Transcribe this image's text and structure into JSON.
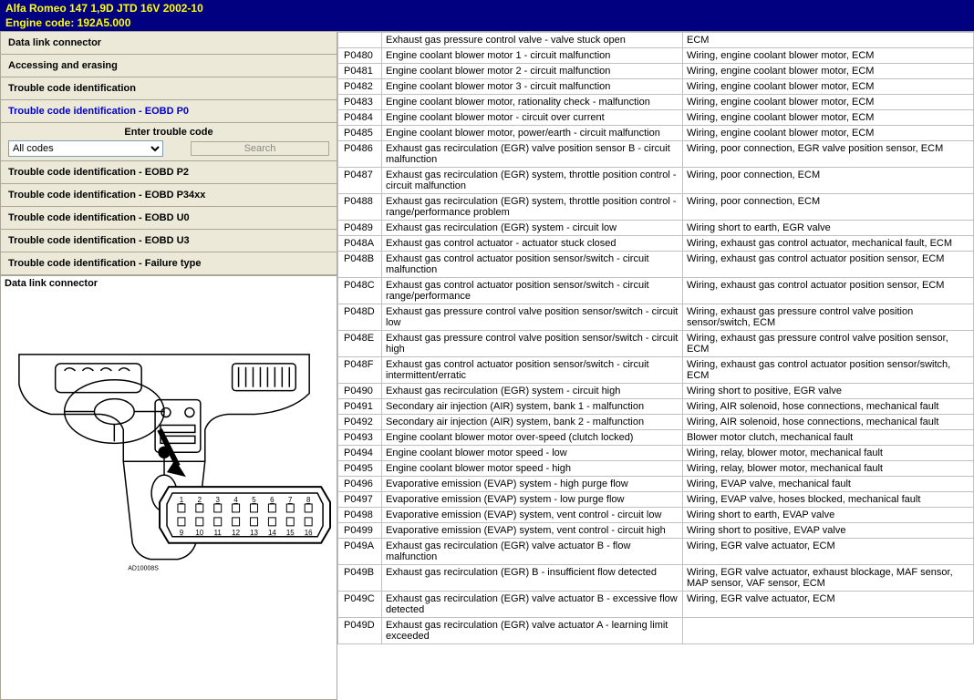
{
  "header": {
    "line1": "Alfa Romeo   147   1,9D JTD 16V 2002-10",
    "line2": "Engine code: 192A5.000"
  },
  "nav": {
    "items": [
      {
        "label": "Data link connector",
        "active": false
      },
      {
        "label": "Accessing and erasing",
        "active": false
      },
      {
        "label": "Trouble code identification",
        "active": false
      },
      {
        "label": "Trouble code identification - EOBD P0",
        "active": true
      }
    ],
    "items_after": [
      {
        "label": "Trouble code identification - EOBD P2"
      },
      {
        "label": "Trouble code identification - EOBD P34xx"
      },
      {
        "label": "Trouble code identification - EOBD U0"
      },
      {
        "label": "Trouble code identification - EOBD U3"
      },
      {
        "label": "Trouble code identification - Failure type"
      }
    ]
  },
  "search": {
    "title": "Enter trouble code",
    "select_value": "All codes",
    "button_label": "Search"
  },
  "diagram": {
    "title": "Data link connector",
    "ref": "AD10008S"
  },
  "codes_top_partial": {
    "desc": "Exhaust gas pressure control valve - valve stuck open",
    "cause": "ECM"
  },
  "codes": [
    {
      "code": "P0480",
      "desc": "Engine coolant blower motor 1 - circuit malfunction",
      "cause": "Wiring, engine coolant blower motor, ECM"
    },
    {
      "code": "P0481",
      "desc": "Engine coolant blower motor 2 - circuit malfunction",
      "cause": "Wiring, engine coolant blower motor, ECM"
    },
    {
      "code": "P0482",
      "desc": "Engine coolant blower motor 3 - circuit malfunction",
      "cause": "Wiring, engine coolant blower motor, ECM"
    },
    {
      "code": "P0483",
      "desc": "Engine coolant blower motor, rationality check - malfunction",
      "cause": "Wiring, engine coolant blower motor, ECM"
    },
    {
      "code": "P0484",
      "desc": "Engine coolant blower motor - circuit over current",
      "cause": "Wiring, engine coolant blower motor, ECM"
    },
    {
      "code": "P0485",
      "desc": "Engine coolant blower motor, power/earth - circuit malfunction",
      "cause": "Wiring, engine coolant blower motor, ECM"
    },
    {
      "code": "P0486",
      "desc": "Exhaust gas recirculation (EGR) valve position sensor B - circuit malfunction",
      "cause": "Wiring, poor connection, EGR valve position sensor, ECM"
    },
    {
      "code": "P0487",
      "desc": "Exhaust gas recirculation (EGR) system, throttle position control - circuit malfunction",
      "cause": "Wiring, poor connection, ECM"
    },
    {
      "code": "P0488",
      "desc": "Exhaust gas recirculation (EGR) system, throttle position control - range/performance problem",
      "cause": "Wiring, poor connection, ECM"
    },
    {
      "code": "P0489",
      "desc": "Exhaust gas recirculation (EGR) system - circuit low",
      "cause": "Wiring short to earth, EGR valve"
    },
    {
      "code": "P048A",
      "desc": "Exhaust gas control actuator - actuator stuck closed",
      "cause": "Wiring, exhaust gas control actuator, mechanical fault, ECM"
    },
    {
      "code": "P048B",
      "desc": "Exhaust gas control actuator position sensor/switch - circuit malfunction",
      "cause": "Wiring, exhaust gas control actuator position sensor, ECM"
    },
    {
      "code": "P048C",
      "desc": "Exhaust gas control actuator position sensor/switch - circuit range/performance",
      "cause": "Wiring, exhaust gas control actuator position sensor, ECM"
    },
    {
      "code": "P048D",
      "desc": "Exhaust gas pressure control valve position sensor/switch - circuit low",
      "cause": "Wiring, exhaust gas pressure control valve position sensor/switch, ECM"
    },
    {
      "code": "P048E",
      "desc": "Exhaust gas pressure control valve position sensor/switch - circuit high",
      "cause": "Wiring, exhaust gas pressure control valve position sensor, ECM"
    },
    {
      "code": "P048F",
      "desc": "Exhaust gas control actuator position sensor/switch - circuit intermittent/erratic",
      "cause": "Wiring, exhaust gas control actuator position sensor/switch, ECM"
    },
    {
      "code": "P0490",
      "desc": "Exhaust gas recirculation (EGR) system - circuit high",
      "cause": "Wiring short to positive, EGR valve"
    },
    {
      "code": "P0491",
      "desc": "Secondary air injection (AIR) system, bank 1 - malfunction",
      "cause": "Wiring, AIR solenoid, hose connections, mechanical fault"
    },
    {
      "code": "P0492",
      "desc": "Secondary air injection (AIR) system, bank 2 - malfunction",
      "cause": "Wiring, AIR solenoid, hose connections, mechanical fault"
    },
    {
      "code": "P0493",
      "desc": "Engine coolant blower motor over-speed (clutch locked)",
      "cause": "Blower motor clutch, mechanical fault"
    },
    {
      "code": "P0494",
      "desc": "Engine coolant blower motor speed - low",
      "cause": "Wiring, relay, blower motor, mechanical fault"
    },
    {
      "code": "P0495",
      "desc": "Engine coolant blower motor speed - high",
      "cause": "Wiring, relay, blower motor, mechanical fault"
    },
    {
      "code": "P0496",
      "desc": "Evaporative emission (EVAP) system - high purge flow",
      "cause": "Wiring, EVAP valve, mechanical fault"
    },
    {
      "code": "P0497",
      "desc": "Evaporative emission (EVAP) system - low purge flow",
      "cause": "Wiring, EVAP valve, hoses blocked, mechanical fault"
    },
    {
      "code": "P0498",
      "desc": "Evaporative emission (EVAP) system, vent control - circuit low",
      "cause": "Wiring short to earth, EVAP valve"
    },
    {
      "code": "P0499",
      "desc": "Evaporative emission (EVAP) system, vent control - circuit high",
      "cause": "Wiring short to positive, EVAP valve"
    },
    {
      "code": "P049A",
      "desc": "Exhaust gas recirculation (EGR) valve actuator B - flow malfunction",
      "cause": "Wiring, EGR valve actuator, ECM"
    },
    {
      "code": "P049B",
      "desc": "Exhaust gas recirculation (EGR) B - insufficient flow detected",
      "cause": "Wiring, EGR valve actuator, exhaust blockage, MAF sensor, MAP sensor, VAF sensor, ECM"
    },
    {
      "code": "P049C",
      "desc": "Exhaust gas recirculation (EGR) valve actuator B - excessive flow detected",
      "cause": "Wiring, EGR valve actuator, ECM"
    },
    {
      "code": "P049D",
      "desc": "Exhaust gas recirculation (EGR) valve actuator A - learning limit exceeded",
      "cause": ""
    }
  ],
  "connector_pins": [
    1,
    2,
    3,
    4,
    5,
    6,
    7,
    8,
    9,
    10,
    11,
    12,
    13,
    14,
    15,
    16
  ],
  "colors": {
    "header_bg": "#000080",
    "header_fg": "#ffff00",
    "panel_bg": "#ece9d8",
    "border": "#aca899",
    "cell_border": "#c0c0c0",
    "active_link": "#0000cc"
  }
}
